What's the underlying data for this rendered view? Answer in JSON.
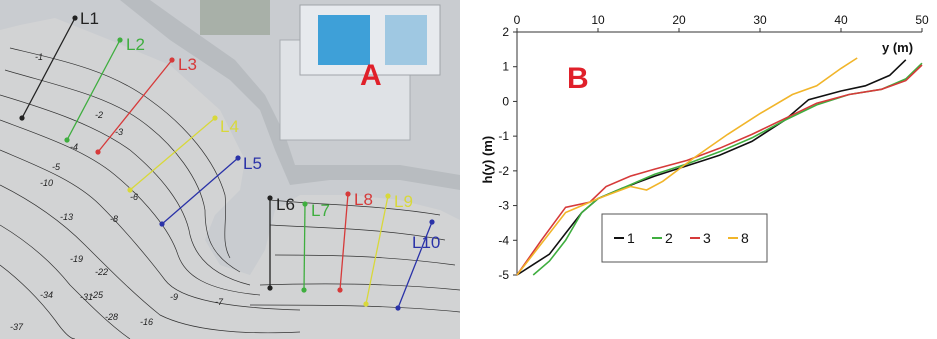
{
  "panel_a": {
    "letter": "A",
    "profile_lines": [
      {
        "label": "L1",
        "color": "#222222"
      },
      {
        "label": "L2",
        "color": "#3fae3f"
      },
      {
        "label": "L3",
        "color": "#d63a3a"
      },
      {
        "label": "L4",
        "color": "#d8d83a"
      },
      {
        "label": "L5",
        "color": "#2a32a8"
      },
      {
        "label": "L6",
        "color": "#222222"
      },
      {
        "label": "L7",
        "color": "#3fae3f"
      },
      {
        "label": "L8",
        "color": "#d63a3a"
      },
      {
        "label": "L9",
        "color": "#d8d83a"
      },
      {
        "label": "L10",
        "color": "#2a32a8"
      }
    ],
    "contour_labels": [
      "-1",
      "-2",
      "-3",
      "-4",
      "-5",
      "-6",
      "-8",
      "-10",
      "-13",
      "-19",
      "-22",
      "-25",
      "-28",
      "-31",
      "-34",
      "-37",
      "-9",
      "-7",
      "-16"
    ]
  },
  "chart_data": {
    "type": "line",
    "panel_letter": "B",
    "xlabel": "y (m)",
    "ylabel": "h(y)  (m)",
    "xlim": [
      0,
      50
    ],
    "ylim": [
      -5,
      2
    ],
    "xticks": [
      "0",
      "10",
      "20",
      "30",
      "40",
      "50"
    ],
    "yticks": [
      "2",
      "1",
      "0",
      "-1",
      "-2",
      "-3",
      "-4",
      "-5"
    ],
    "x_axis_position": "top",
    "grid": false,
    "legend_position": "lower-left",
    "series": [
      {
        "name": "1",
        "color": "#111111",
        "x": [
          0,
          2,
          4,
          6,
          8,
          10,
          13,
          17,
          21,
          25,
          29,
          33,
          36,
          40,
          43,
          46,
          48
        ],
        "y": [
          -5,
          -4.7,
          -4.4,
          -3.8,
          -3.2,
          -2.8,
          -2.5,
          -2.15,
          -1.85,
          -1.55,
          -1.15,
          -0.55,
          0.05,
          0.3,
          0.45,
          0.75,
          1.2
        ]
      },
      {
        "name": "2",
        "color": "#3fae3f",
        "x": [
          2,
          4,
          6,
          8,
          10,
          13,
          17,
          21,
          25,
          29,
          33,
          37,
          41,
          45,
          48,
          50
        ],
        "y": [
          -5,
          -4.6,
          -4.0,
          -3.2,
          -2.8,
          -2.5,
          -2.1,
          -1.8,
          -1.45,
          -1.05,
          -0.55,
          -0.1,
          0.2,
          0.35,
          0.65,
          1.1
        ]
      },
      {
        "name": "3",
        "color": "#d63a3a",
        "x": [
          0,
          3,
          6,
          9,
          11,
          14,
          17,
          21,
          25,
          29,
          33,
          37,
          41,
          45,
          48,
          50
        ],
        "y": [
          -5,
          -4.0,
          -3.05,
          -2.9,
          -2.45,
          -2.15,
          -1.95,
          -1.7,
          -1.35,
          -0.95,
          -0.5,
          -0.05,
          0.2,
          0.35,
          0.6,
          1.05
        ]
      },
      {
        "name": "8",
        "color": "#f1b52a",
        "x": [
          0,
          3,
          6,
          8,
          10,
          14,
          16,
          18,
          22,
          26,
          30,
          34,
          37,
          40,
          42
        ],
        "y": [
          -5,
          -4.1,
          -3.2,
          -3.0,
          -2.8,
          -2.45,
          -2.55,
          -2.3,
          -1.6,
          -0.95,
          -0.35,
          0.2,
          0.45,
          0.95,
          1.25
        ]
      }
    ]
  }
}
